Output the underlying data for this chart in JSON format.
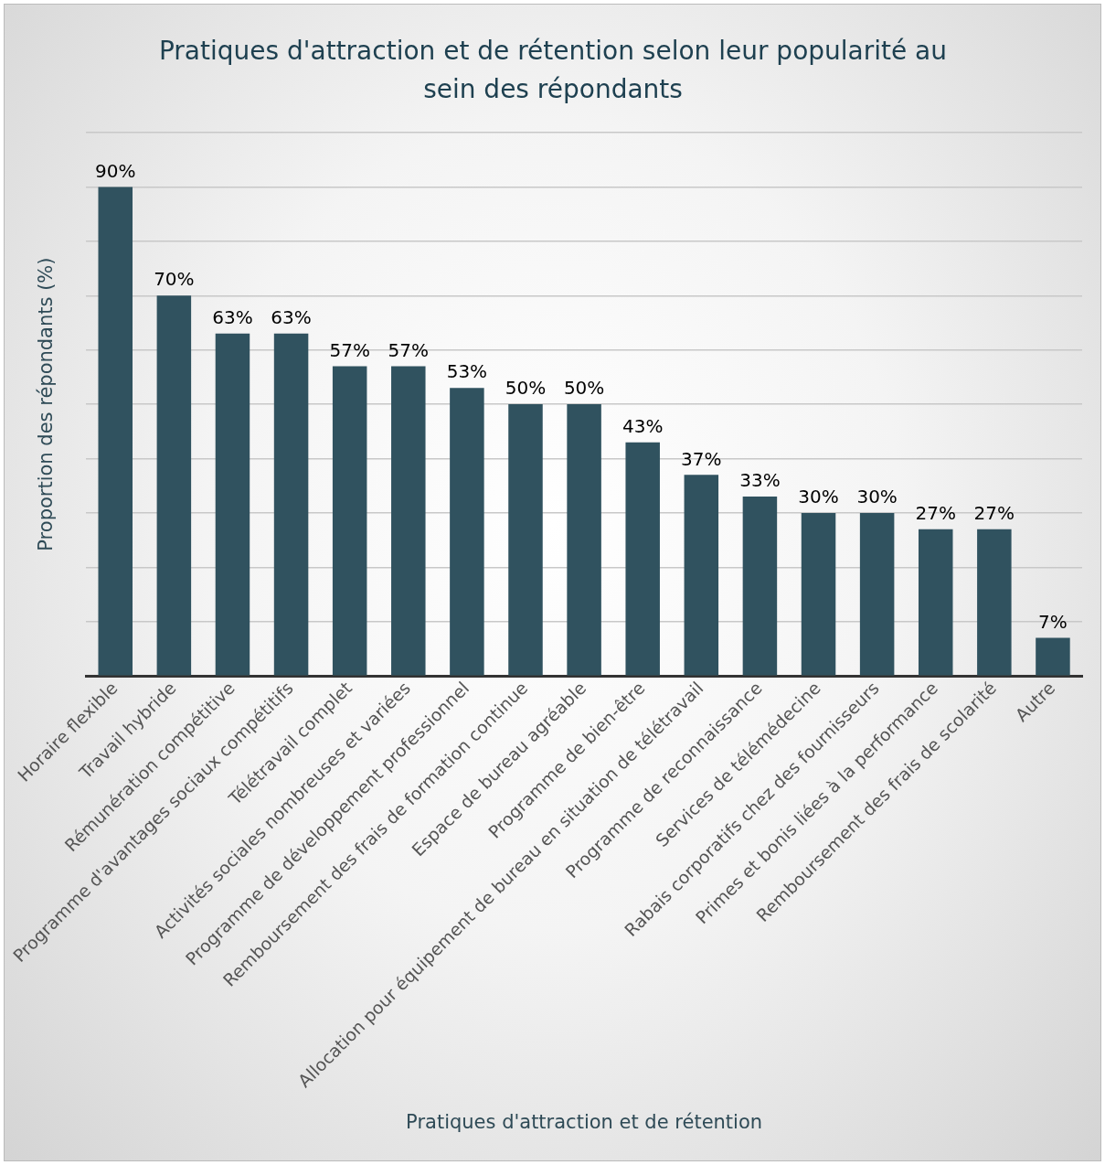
{
  "chart_data": {
    "type": "bar",
    "title": "Pratiques d'attraction et de rétention selon leur popularité au sein des répondants",
    "xlabel": "Pratiques d'attraction et de rétention",
    "ylabel": "Proportion des répondants (%)",
    "categories": [
      "Horaire flexible",
      "Travail hybride",
      "Rémunération compétitive",
      "Programme d'avantages sociaux compétitifs",
      "Télétravail complet",
      "Activités sociales nombreuses et variées",
      "Programme de développement professionnel",
      "Remboursement des frais de formation continue",
      "Espace de bureau agréable",
      "Programme de bien-être",
      "Allocation pour équipement de bureau en situation de télétravail",
      "Programme de reconnaissance",
      "Services de télémédecine",
      "Rabais corporatifs chez des fournisseurs",
      "Primes et bonis liées à la performance",
      "Remboursement des frais de scolarité",
      "Autre"
    ],
    "values": [
      90,
      70,
      63,
      63,
      57,
      57,
      53,
      50,
      50,
      43,
      37,
      33,
      30,
      30,
      27,
      27,
      7
    ],
    "value_labels": [
      "90%",
      "70%",
      "63%",
      "63%",
      "57%",
      "57%",
      "53%",
      "50%",
      "50%",
      "43%",
      "37%",
      "33%",
      "30%",
      "30%",
      "27%",
      "27%",
      "7%"
    ],
    "color": "#30525f",
    "ylim": [
      0,
      100
    ],
    "grid": "y",
    "tick_labels": "x",
    "legend": false
  }
}
